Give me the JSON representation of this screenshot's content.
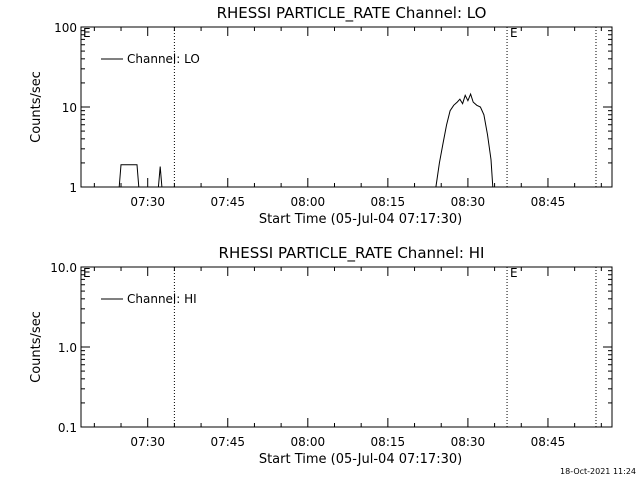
{
  "footer": {
    "timestamp": "18-Oct-2021 11:24"
  },
  "chart_data": [
    {
      "type": "line",
      "title": "RHESSI PARTICLE_RATE Channel: LO",
      "xlabel": "Start Time (05-Jul-04 07:17:30)",
      "ylabel": "Counts/sec",
      "yscale": "log",
      "ylim": [
        1,
        100
      ],
      "xlim": [
        "07:17:30",
        "08:57:00"
      ],
      "x_tick_labels": [
        "07:30",
        "07:45",
        "08:00",
        "08:15",
        "08:30",
        "08:45"
      ],
      "y_tick_labels": [
        "1",
        "10",
        "100"
      ],
      "grid": false,
      "legend": {
        "position": "top-left",
        "entries": [
          "Channel: LO"
        ]
      },
      "markers": [
        {
          "x": "07:35:00",
          "style": "dotted",
          "label": ""
        },
        {
          "x": "08:37:20",
          "style": "dotted",
          "label": "E"
        },
        {
          "x": "08:54:00",
          "style": "dotted",
          "label": ""
        }
      ],
      "start_marker_label": "E",
      "series": [
        {
          "name": "Channel: LO",
          "points": [
            [
              "07:24:40",
              1.0
            ],
            [
              "07:25:00",
              1.9
            ],
            [
              "07:28:00",
              1.9
            ],
            [
              "07:28:20",
              1.0
            ],
            [
              "07:32:00",
              1.0
            ],
            [
              "07:32:20",
              1.8
            ],
            [
              "07:32:40",
              1.0
            ],
            [
              "08:24:00",
              1.0
            ],
            [
              "08:24:40",
              2.0
            ],
            [
              "08:25:20",
              3.5
            ],
            [
              "08:26:00",
              6.0
            ],
            [
              "08:26:40",
              9.0
            ],
            [
              "08:27:20",
              10.5
            ],
            [
              "08:28:00",
              11.5
            ],
            [
              "08:28:30",
              12.5
            ],
            [
              "08:29:00",
              11.0
            ],
            [
              "08:29:30",
              14.0
            ],
            [
              "08:30:00",
              12.0
            ],
            [
              "08:30:30",
              14.5
            ],
            [
              "08:31:00",
              11.5
            ],
            [
              "08:31:40",
              10.5
            ],
            [
              "08:32:20",
              10.0
            ],
            [
              "08:33:00",
              8.0
            ],
            [
              "08:33:40",
              4.5
            ],
            [
              "08:34:20",
              2.2
            ],
            [
              "08:34:40",
              1.0
            ]
          ]
        }
      ]
    },
    {
      "type": "line",
      "title": "RHESSI PARTICLE_RATE Channel: HI",
      "xlabel": "Start Time (05-Jul-04 07:17:30)",
      "ylabel": "Counts/sec",
      "yscale": "log",
      "ylim": [
        0.1,
        10
      ],
      "xlim": [
        "07:17:30",
        "08:57:00"
      ],
      "x_tick_labels": [
        "07:30",
        "07:45",
        "08:00",
        "08:15",
        "08:30",
        "08:45"
      ],
      "y_tick_labels": [
        "0.1",
        "1.0",
        "10.0"
      ],
      "grid": false,
      "legend": {
        "position": "top-left",
        "entries": [
          "Channel: HI"
        ]
      },
      "markers": [
        {
          "x": "07:35:00",
          "style": "dotted",
          "label": ""
        },
        {
          "x": "08:37:20",
          "style": "dotted",
          "label": "E"
        },
        {
          "x": "08:54:00",
          "style": "dotted",
          "label": ""
        }
      ],
      "start_marker_label": "E",
      "series": [
        {
          "name": "Channel: HI",
          "points": []
        }
      ]
    }
  ]
}
